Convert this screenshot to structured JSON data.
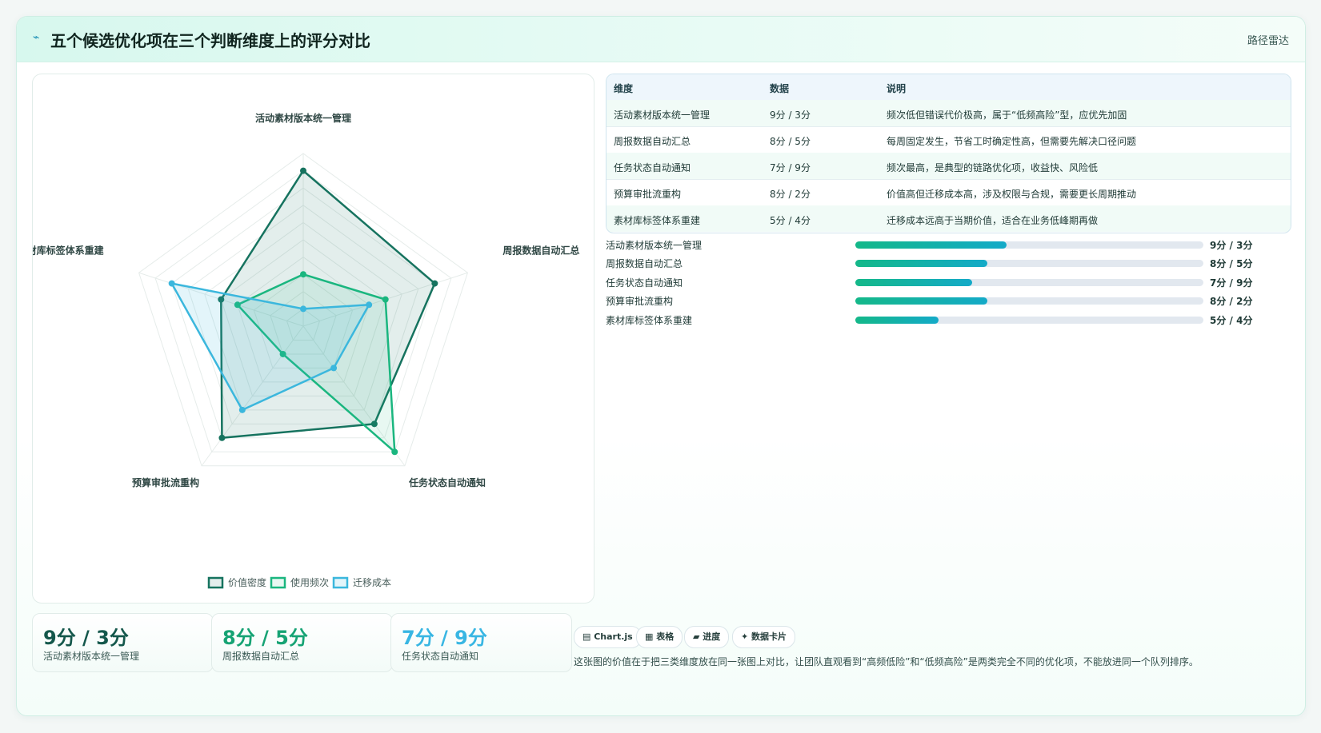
{
  "header": {
    "logo_glyph": "⌁",
    "title": "五个候选优化项在三个判断维度上的评分对比",
    "tag": "路径雷达"
  },
  "chart_data": {
    "type": "radar",
    "axes": [
      "活动素材版本统一管理",
      "周报数据自动汇总",
      "任务状态自动通知",
      "预算审批流重构",
      "素材库标签体系重建"
    ],
    "rmax": 10,
    "rings": 10,
    "series": [
      {
        "name": "价值密度",
        "values": [
          9,
          8,
          7,
          8,
          5
        ],
        "color": "#16735f",
        "fill": "rgba(22,115,95,0.12)"
      },
      {
        "name": "使用频次",
        "values": [
          3,
          5,
          9,
          2,
          4
        ],
        "color": "#1ab67f",
        "fill": "rgba(26,182,127,0.10)"
      },
      {
        "name": "迁移成本",
        "values": [
          1,
          4,
          3,
          6,
          8
        ],
        "color": "#3bb7dd",
        "fill": "rgba(59,183,221,0.14)"
      }
    ],
    "legend": "bottom"
  },
  "stats": [
    {
      "value": "9分 / 3分",
      "label": "活动素材版本统一管理",
      "color": "#14574b"
    },
    {
      "value": "8分 / 5分",
      "label": "周报数据自动汇总",
      "color": "#16a374"
    },
    {
      "value": "7分 / 9分",
      "label": "任务状态自动通知",
      "color": "#38b6e3"
    }
  ],
  "table": {
    "headers": [
      "维度",
      "数据",
      "说明"
    ],
    "rows": [
      [
        "活动素材版本统一管理",
        "9分 / 3分",
        "频次低但错误代价极高，属于“低频高险”型，应优先加固"
      ],
      [
        "周报数据自动汇总",
        "8分 / 5分",
        "每周固定发生，节省工时确定性高，但需要先解决口径问题"
      ],
      [
        "任务状态自动通知",
        "7分 / 9分",
        "频次最高，是典型的链路优化项，收益快、风险低"
      ],
      [
        "预算审批流重构",
        "8分 / 2分",
        "价值高但迁移成本高，涉及权限与合规，需要更长周期推动"
      ],
      [
        "素材库标签体系重建",
        "5分 / 4分",
        "迁移成本远高于当期价值，适合在业务低峰期再做"
      ]
    ]
  },
  "progress": [
    {
      "name": "活动素材版本统一管理",
      "value": "9分 / 3分",
      "level": 0.435
    },
    {
      "name": "周报数据自动汇总",
      "value": "8分 / 5分",
      "level": 0.38
    },
    {
      "name": "任务状态自动通知",
      "value": "7分 / 9分",
      "level": 0.335
    },
    {
      "name": "预算审批流重构",
      "value": "8分 / 2分",
      "level": 0.38
    },
    {
      "name": "素材库标签体系重建",
      "value": "5分 / 4分",
      "level": 0.24
    }
  ],
  "pills": [
    "▤ Chart.js",
    "▦ 表格",
    "▰ 进度",
    "✦ 数据卡片"
  ],
  "note": "这张图的价值在于把三类维度放在同一张图上对比，让团队直观看到“高频低险”和“低频高险”是两类完全不同的优化项，不能放进同一个队列排序。"
}
